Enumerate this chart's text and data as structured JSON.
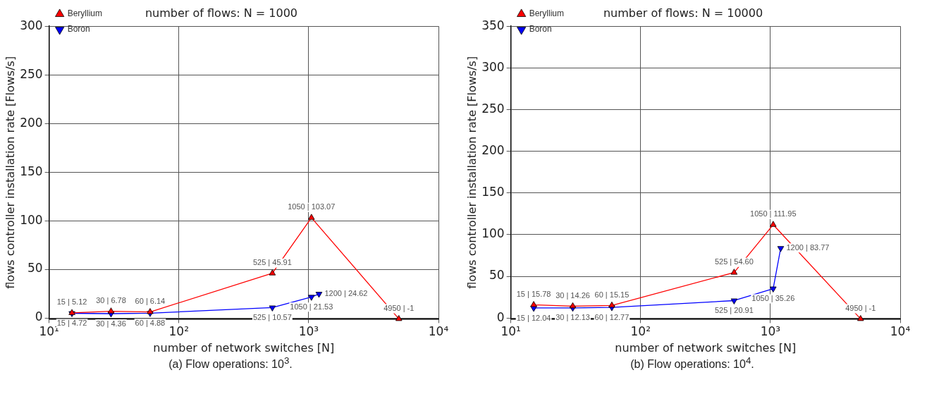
{
  "chart_data": [
    {
      "type": "line",
      "title": "number of flows: N = 1000",
      "xlabel": "number of network switches [N]",
      "ylabel": "flows controller installation rate [Flows/s]",
      "log": "x",
      "xlim": [
        10,
        10000
      ],
      "xticks": [
        {
          "value": 10,
          "label": "10¹"
        },
        {
          "value": 100,
          "label": "10²"
        },
        {
          "value": 1000,
          "label": "10³"
        },
        {
          "value": 10000,
          "label": "10⁴"
        }
      ],
      "ylim": [
        -1,
        300
      ],
      "yticks": [
        0,
        50,
        100,
        150,
        200,
        250,
        300
      ],
      "grid": true,
      "legend": "top left",
      "marker": "triangle",
      "line_style": "solid",
      "series": [
        {
          "name": "Beryllium",
          "color": "#ff0000",
          "x": [
            15,
            30,
            60,
            525,
            1050,
            4950
          ],
          "values": [
            5.12,
            6.78,
            6.14,
            45.91,
            103.07,
            -1
          ],
          "value_labels": [
            "15 | 5.12",
            "30 | 6.78",
            "60 | 6.14",
            "525 | 45.91",
            "1050 | 103.07",
            "4950 | -1"
          ]
        },
        {
          "name": "Boron",
          "color": "#0000ff",
          "x": [
            15,
            30,
            60,
            525,
            1050,
            1200
          ],
          "values": [
            4.72,
            4.36,
            4.88,
            10.57,
            21.53,
            24.62
          ],
          "value_labels": [
            "15 | 4.72",
            "30 | 4.36",
            "60 | 4.88",
            "525 | 10.57",
            "1050 | 21.53",
            "1200 | 24.62"
          ]
        }
      ],
      "annotations": [
        "(a)  Flow operations: 10$^{3}$."
      ]
    },
    {
      "type": "line",
      "title": "number of flows: N = 10000",
      "xlabel": "number of network switches [N]",
      "ylabel": "flows controller installation rate [Flows/s]",
      "log": "x",
      "xlim": [
        10,
        10000
      ],
      "xticks": [
        {
          "value": 10,
          "label": "10¹"
        },
        {
          "value": 100,
          "label": "10²"
        },
        {
          "value": 1000,
          "label": "10³"
        },
        {
          "value": 10000,
          "label": "10⁴"
        }
      ],
      "ylim": [
        -1,
        350
      ],
      "yticks": [
        0,
        50,
        100,
        150,
        200,
        250,
        300,
        350
      ],
      "grid": true,
      "legend": "top left",
      "marker": "triangle",
      "line_style": "solid",
      "series": [
        {
          "name": "Beryllium",
          "color": "#ff0000",
          "x": [
            15,
            30,
            60,
            525,
            1050,
            4950
          ],
          "values": [
            15.78,
            14.26,
            15.15,
            54.6,
            111.95,
            -1
          ],
          "value_labels": [
            "15 | 15.78",
            "30 | 14.26",
            "60 | 15.15",
            "525 | 54.60",
            "1050 | 111.95",
            "4950 | -1"
          ]
        },
        {
          "name": "Boron",
          "color": "#0000ff",
          "x": [
            15,
            30,
            60,
            525,
            1050,
            1200
          ],
          "values": [
            12.04,
            12.13,
            12.77,
            20.91,
            35.26,
            83.77
          ],
          "value_labels": [
            "15 | 12.04",
            "30 | 12.13",
            "60 | 12.77",
            "525 | 20.91",
            "1050 | 35.26",
            "1200 | 83.77"
          ]
        }
      ],
      "annotations": [
        "(b)  Flow operations: 10$^{4}$."
      ]
    }
  ]
}
